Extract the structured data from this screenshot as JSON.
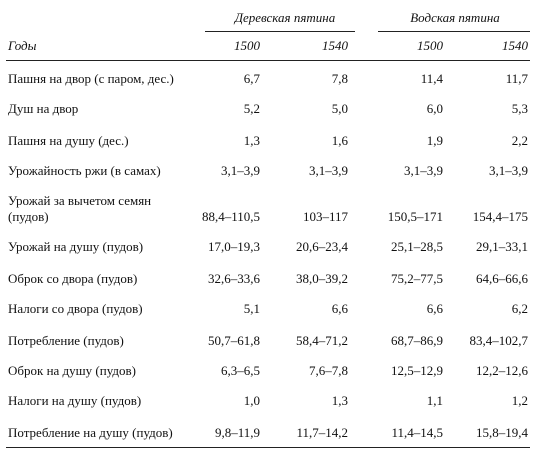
{
  "table": {
    "groups": [
      "Деревская пятина",
      "Водская пятина"
    ],
    "header": [
      "Годы",
      "1500",
      "1540",
      "1500",
      "1540"
    ],
    "rows": [
      [
        "Пашня на двор (с паром, дес.)",
        "6,7",
        "7,8",
        "11,4",
        "11,7"
      ],
      [
        "Душ на двор",
        "5,2",
        "5,0",
        "6,0",
        "5,3"
      ],
      [
        "Пашня на душу (дес.)",
        "1,3",
        "1,6",
        "1,9",
        "2,2"
      ],
      [
        "Урожайность ржи (в самах)",
        "3,1–3,9",
        "3,1–3,9",
        "3,1–3,9",
        "3,1–3,9"
      ],
      [
        "Урожай за вычетом семян (пудов)",
        "88,4–110,5",
        "103–117",
        "150,5–171",
        "154,4–175"
      ],
      [
        "Урожай на душу (пудов)",
        "17,0–19,3",
        "20,6–23,4",
        "25,1–28,5",
        "29,1–33,1"
      ],
      [
        "Оброк со двора (пудов)",
        "32,6–33,6",
        "38,0–39,2",
        "75,2–77,5",
        "64,6–66,6"
      ],
      [
        "Налоги со двора (пудов)",
        "5,1",
        "6,6",
        "6,6",
        "6,2"
      ],
      [
        "Потребление (пудов)",
        "50,7–61,8",
        "58,4–71,2",
        "68,7–86,9",
        "83,4–102,7"
      ],
      [
        "Оброк на душу (пудов)",
        "6,3–6,5",
        "7,6–7,8",
        "12,5–12,9",
        "12,2–12,6"
      ],
      [
        "Налоги на душу (пудов)",
        "1,0",
        "1,3",
        "1,1",
        "1,2"
      ],
      [
        "Потребление на душу (пудов)",
        "9,8–11,9",
        "11,7–14,2",
        "11,4–14,5",
        "15,8–19,4"
      ]
    ]
  }
}
